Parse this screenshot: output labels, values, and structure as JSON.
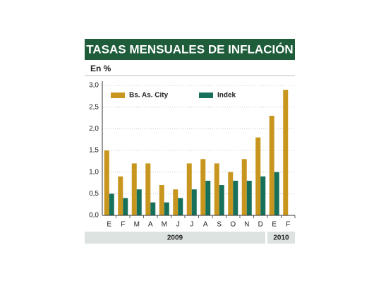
{
  "chart_data": {
    "type": "bar",
    "title": "TASAS MENSUALES DE INFLACIÓN",
    "subtitle": "En %",
    "categories": [
      "E",
      "F",
      "M",
      "A",
      "M",
      "J",
      "J",
      "A",
      "S",
      "O",
      "N",
      "D",
      "E",
      "F"
    ],
    "x_groups": [
      {
        "label": "2009",
        "count": 12
      },
      {
        "label": "2010",
        "count": 2
      }
    ],
    "series": [
      {
        "name": "Bs. As. City",
        "color": "#c8961e",
        "values": [
          1.5,
          0.9,
          1.2,
          1.2,
          0.7,
          0.6,
          1.2,
          1.3,
          1.2,
          1.0,
          1.3,
          1.8,
          2.3,
          2.9
        ]
      },
      {
        "name": "Indek",
        "color": "#17705a",
        "values": [
          0.5,
          0.4,
          0.6,
          0.3,
          0.3,
          0.4,
          0.6,
          0.8,
          0.7,
          0.8,
          0.8,
          0.9,
          1.0,
          null
        ]
      }
    ],
    "ylim": [
      0,
      3
    ],
    "yticks": [
      {
        "value": 0,
        "label": "0,0"
      },
      {
        "value": 0.5,
        "label": "0,5"
      },
      {
        "value": 1,
        "label": "1,0"
      },
      {
        "value": 1.5,
        "label": "1,5"
      },
      {
        "value": 2,
        "label": "2,0"
      },
      {
        "value": 2.5,
        "label": "2,5"
      },
      {
        "value": 3,
        "label": "3,0"
      }
    ],
    "grid": true,
    "legend": "top-left"
  }
}
